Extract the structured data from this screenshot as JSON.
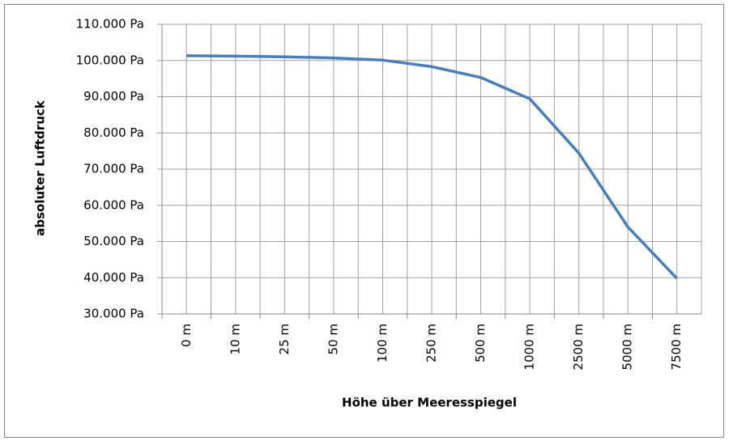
{
  "chart_data": {
    "type": "line",
    "x_label": "Höhe über Meeresspiegel",
    "y_label": "absoluter Luftdruck",
    "categories": [
      "0 m",
      "10 m",
      "25 m",
      "50 m",
      "100 m",
      "250 m",
      "500 m",
      "1000 m",
      "2500 m",
      "5000 m",
      "7500 m"
    ],
    "series": [
      {
        "name": "absoluter Luftdruck",
        "color": "#4a7ebb",
        "values": [
          101300,
          101200,
          101000,
          100700,
          100100,
          98300,
          95300,
          89400,
          74400,
          54000,
          39800
        ]
      }
    ],
    "ylim": [
      30000,
      110000
    ],
    "yticks": [
      {
        "value": 30000,
        "label": "30.000 Pa"
      },
      {
        "value": 40000,
        "label": "40.000 Pa"
      },
      {
        "value": 50000,
        "label": "50.000 Pa"
      },
      {
        "value": 60000,
        "label": "60.000 Pa"
      },
      {
        "value": 70000,
        "label": "70.000 Pa"
      },
      {
        "value": 80000,
        "label": "80.000 Pa"
      },
      {
        "value": 90000,
        "label": "90.000 Pa"
      },
      {
        "value": 100000,
        "label": "100.000 Pa"
      },
      {
        "value": 110000,
        "label": "110.000 Pa"
      }
    ],
    "grid": true
  }
}
